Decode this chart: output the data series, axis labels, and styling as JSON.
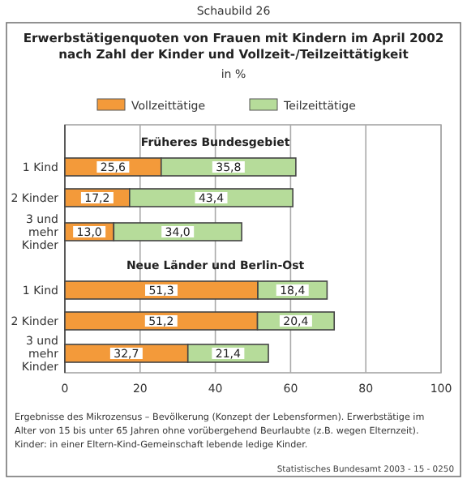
{
  "chart_data": {
    "type": "bar",
    "orientation": "horizontal",
    "stacked": true,
    "title": "Erwerbstätigenquoten von Frauen mit Kindern im April 2002 nach Zahl der Kinder und Vollzeit-/Teilzeittätigkeit",
    "subtitle": "in %",
    "categories": [
      "1 Kind",
      "2 Kinder",
      "3 und mehr Kinder",
      "1 Kind",
      "2 Kinder",
      "3 und mehr Kinder"
    ],
    "series": [
      {
        "name": "Vollzeittätige",
        "color": "#f39a3a",
        "values": [
          25.6,
          17.2,
          13.0,
          51.3,
          51.2,
          32.7
        ],
        "value_labels": [
          "25,6",
          "17,2",
          "13,0",
          "51,3",
          "51,2",
          "32,7"
        ]
      },
      {
        "name": "Teilzeittätige",
        "color": "#b6dc9a",
        "values": [
          35.8,
          43.4,
          34.0,
          18.4,
          20.4,
          21.4
        ],
        "value_labels": [
          "35,8",
          "43,4",
          "34,0",
          "18,4",
          "20,4",
          "21,4"
        ]
      }
    ],
    "xlim": [
      0,
      100
    ],
    "xticks": [
      0,
      20,
      40,
      60,
      80,
      100
    ],
    "grid": "x",
    "legend": "top",
    "annotations": [
      "Schaubild 26",
      "Früheres Bundesgebiet",
      "Neue Länder und Berlin-Ost",
      "Ergebnisse des Mikrozensus – Bevölkerung (Konzept der Lebensformen). Erwerbstätige im",
      "Alter von 15 bis unter 65 Jahren ohne vorübergehend Beurlaubte (z.B. wegen Elternzeit).",
      "Kinder: in einer Eltern-Kind-Gemeinschaft lebende ledige Kinder.",
      "Statistisches Bundesamt 2003 - 15 - 0250"
    ]
  }
}
